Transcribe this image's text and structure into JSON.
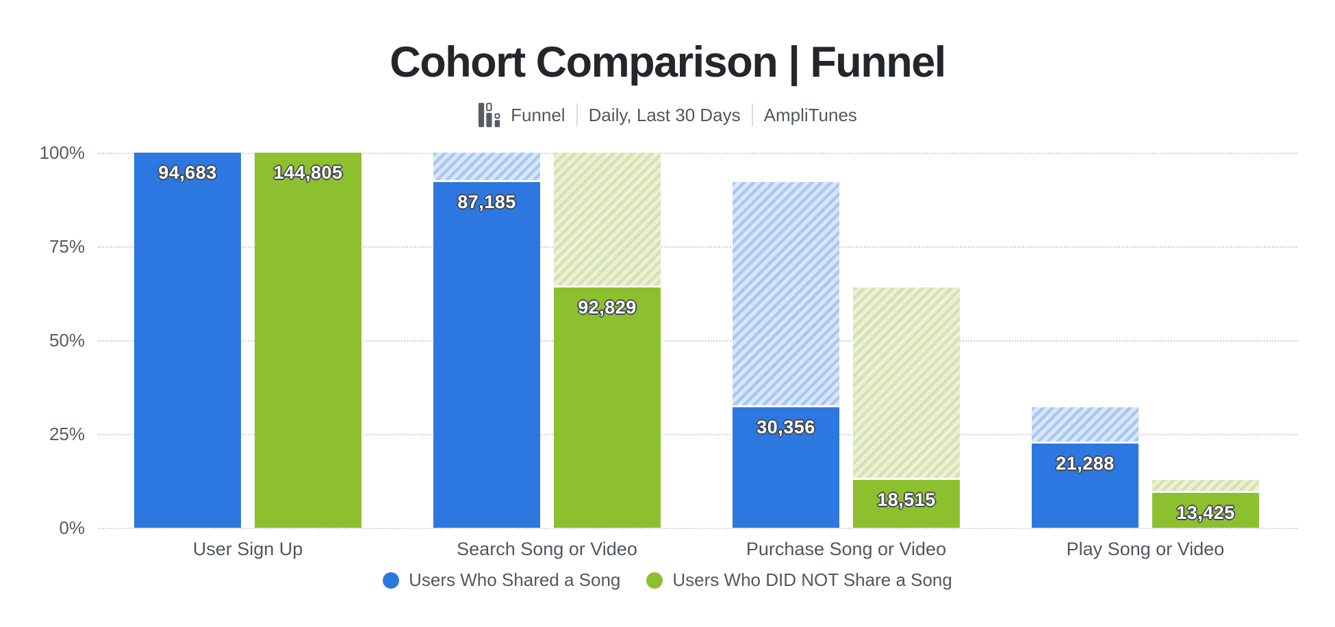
{
  "title": "Cohort Comparison | Funnel",
  "subtitle": {
    "chart_type_label": "Funnel",
    "date_range": "Daily, Last 30 Days",
    "app_name": "AmpliTunes"
  },
  "colors": {
    "series_blue": "#2d78e0",
    "series_green": "#8cc02f",
    "hatch_blue_bg": "#d9e6fa",
    "hatch_blue_stripe": "#a8c8f1",
    "hatch_green_bg": "#eaf0da",
    "hatch_green_stripe": "#d5e3ab",
    "gridline": "#ced3d9",
    "title_text": "#23262b",
    "muted_text": "#51575f",
    "axis_text": "#555b64",
    "value_label_text": "#ffffff",
    "value_label_outline": "#40454c"
  },
  "chart_data": {
    "type": "bar",
    "subtype": "funnel-cohort-comparison",
    "title": "Cohort Comparison | Funnel",
    "categories": [
      "User Sign Up",
      "Search Song or Video",
      "Purchase Song or Video",
      "Play Song or Video"
    ],
    "series": [
      {
        "name": "Users Who Shared a Song",
        "color": "#2d78e0",
        "hatch_bg": "#d9e6fa",
        "hatch_stripe": "#a8c8f1",
        "values": [
          94683,
          87185,
          30356,
          21288
        ],
        "labels": [
          "94,683",
          "87,185",
          "30,356",
          "21,288"
        ],
        "pct_of_first": [
          100,
          92.1,
          32.1,
          22.5
        ]
      },
      {
        "name": "Users Who DID NOT Share a Song",
        "color": "#8cc02f",
        "hatch_bg": "#eaf0da",
        "hatch_stripe": "#d5e3ab",
        "values": [
          144805,
          92829,
          18515,
          13425
        ],
        "labels": [
          "144,805",
          "92,829",
          "18,515",
          "13,425"
        ],
        "pct_of_first": [
          100,
          64.1,
          12.8,
          9.3
        ]
      }
    ],
    "xlabel": "",
    "ylabel": "",
    "ylim": [
      0,
      100
    ],
    "y_ticks": [
      {
        "label": "100%",
        "pct": 100
      },
      {
        "label": "75%",
        "pct": 75
      },
      {
        "label": "50%",
        "pct": 50
      },
      {
        "label": "25%",
        "pct": 25
      },
      {
        "label": "0%",
        "pct": 0
      }
    ],
    "grid": "dotted-horizontal",
    "legend_position": "bottom",
    "note": "Hatched segment above each solid bar spans from previous step's conversion level down to current step's conversion level."
  },
  "legend": {
    "items": [
      {
        "label": "Users Who Shared a Song",
        "color": "#2d78e0"
      },
      {
        "label": "Users Who DID NOT Share a Song",
        "color": "#8cc02f"
      }
    ]
  }
}
